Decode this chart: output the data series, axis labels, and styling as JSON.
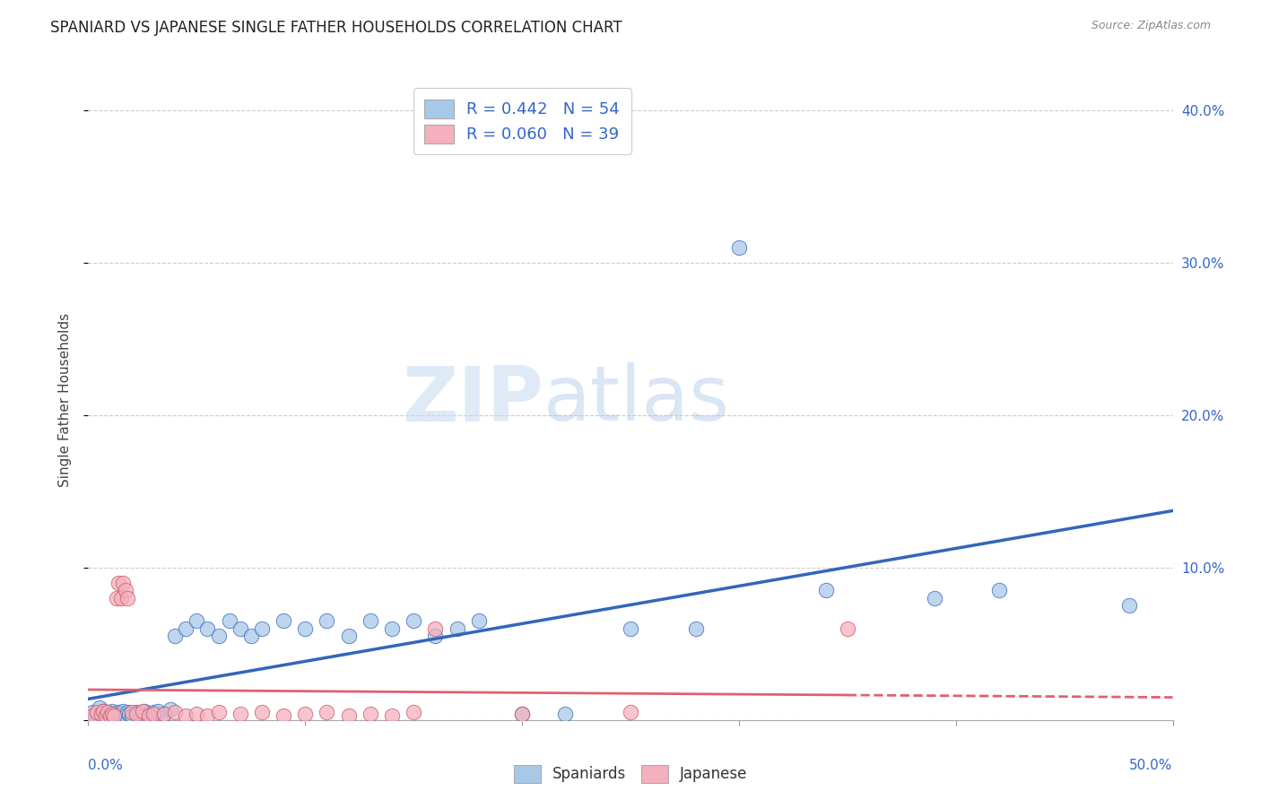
{
  "title": "SPANIARD VS JAPANESE SINGLE FATHER HOUSEHOLDS CORRELATION CHART",
  "source_text": "Source: ZipAtlas.com",
  "ylabel": "Single Father Households",
  "xlim": [
    0.0,
    0.5
  ],
  "ylim": [
    0.0,
    0.42
  ],
  "yticks": [
    0.0,
    0.1,
    0.2,
    0.3,
    0.4
  ],
  "ytick_labels": [
    "",
    "10.0%",
    "20.0%",
    "30.0%",
    "40.0%"
  ],
  "spaniard_color": "#a8c8e8",
  "japanese_color": "#f4b0be",
  "spaniard_line_color": "#3366bb",
  "japanese_line_color": "#e06070",
  "watermark_color": "#dde8f5",
  "background_color": "#ffffff",
  "grid_color": "#cccccc",
  "spaniard_x": [
    0.002,
    0.003,
    0.005,
    0.006,
    0.007,
    0.008,
    0.009,
    0.01,
    0.011,
    0.012,
    0.013,
    0.014,
    0.015,
    0.016,
    0.017,
    0.018,
    0.019,
    0.02,
    0.022,
    0.024,
    0.026,
    0.028,
    0.03,
    0.032,
    0.035,
    0.038,
    0.04,
    0.045,
    0.05,
    0.055,
    0.06,
    0.065,
    0.07,
    0.075,
    0.08,
    0.09,
    0.1,
    0.11,
    0.12,
    0.13,
    0.14,
    0.15,
    0.16,
    0.17,
    0.18,
    0.2,
    0.22,
    0.25,
    0.28,
    0.3,
    0.34,
    0.39,
    0.42,
    0.48
  ],
  "spaniard_y": [
    0.005,
    0.003,
    0.008,
    0.004,
    0.006,
    0.003,
    0.005,
    0.002,
    0.006,
    0.004,
    0.003,
    0.005,
    0.004,
    0.006,
    0.003,
    0.005,
    0.004,
    0.003,
    0.005,
    0.004,
    0.006,
    0.004,
    0.005,
    0.006,
    0.004,
    0.007,
    0.055,
    0.06,
    0.065,
    0.06,
    0.055,
    0.065,
    0.06,
    0.055,
    0.06,
    0.065,
    0.06,
    0.065,
    0.055,
    0.065,
    0.06,
    0.065,
    0.055,
    0.06,
    0.065,
    0.004,
    0.004,
    0.06,
    0.06,
    0.31,
    0.085,
    0.08,
    0.085,
    0.075
  ],
  "japanese_x": [
    0.002,
    0.004,
    0.006,
    0.007,
    0.008,
    0.009,
    0.01,
    0.011,
    0.012,
    0.013,
    0.014,
    0.015,
    0.016,
    0.017,
    0.018,
    0.02,
    0.022,
    0.025,
    0.028,
    0.03,
    0.035,
    0.04,
    0.045,
    0.05,
    0.055,
    0.06,
    0.07,
    0.08,
    0.09,
    0.1,
    0.11,
    0.12,
    0.13,
    0.14,
    0.15,
    0.16,
    0.2,
    0.25,
    0.35
  ],
  "japanese_y": [
    0.003,
    0.005,
    0.004,
    0.006,
    0.003,
    0.005,
    0.003,
    0.004,
    0.003,
    0.08,
    0.09,
    0.08,
    0.09,
    0.085,
    0.08,
    0.005,
    0.004,
    0.006,
    0.003,
    0.004,
    0.004,
    0.005,
    0.003,
    0.004,
    0.003,
    0.005,
    0.004,
    0.005,
    0.003,
    0.004,
    0.005,
    0.003,
    0.004,
    0.003,
    0.005,
    0.06,
    0.004,
    0.005,
    0.06
  ]
}
